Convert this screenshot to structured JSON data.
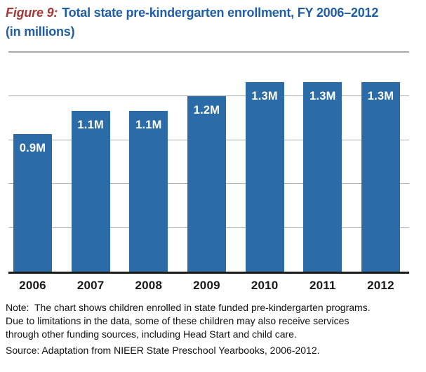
{
  "title": {
    "figure_label": "Figure 9:",
    "text": "Total state pre-kindergarten enrollment, FY 2006–2012",
    "subtitle_line": "(in millions)"
  },
  "chart_data": {
    "type": "bar",
    "title": "Figure 9: Total state pre-kindergarten enrollment, FY 2006–2012 (in millions)",
    "categories": [
      "2006",
      "2007",
      "2008",
      "2009",
      "2010",
      "2011",
      "2012"
    ],
    "values": [
      0.94,
      1.1,
      1.1,
      1.2,
      1.3,
      1.3,
      1.3
    ],
    "bar_labels": [
      "0.9M",
      "1.1M",
      "1.1M",
      "1.2M",
      "1.3M",
      "1.3M",
      "1.3M"
    ],
    "xlabel": "",
    "ylabel": "",
    "ylim": [
      0,
      1.5
    ],
    "gridline_interval": 0.3,
    "grid": "horizontal",
    "legend_position": "none",
    "bar_color": "#2B6CA8",
    "bar_label_color": "#FFFFFF"
  },
  "notes": {
    "note_lines": [
      "Note:  The chart shows children enrolled in state funded pre-kindergarten programs.",
      "Due to limitations in the data, some of these children may also receive services",
      "through other funding sources, including Head Start and child care."
    ],
    "source": "Source: Adaptation from NIEER State Preschool Yearbooks, 2006-2012."
  },
  "colors": {
    "figure_label": "#A23937",
    "title": "#1E5DA8",
    "bar": "#2B6CA8",
    "bar_label": "#FFFFFF",
    "gridline": "#ADADAD",
    "axis": "#1A1A1A",
    "separator": "#A9A9A9",
    "text": "#111111"
  }
}
